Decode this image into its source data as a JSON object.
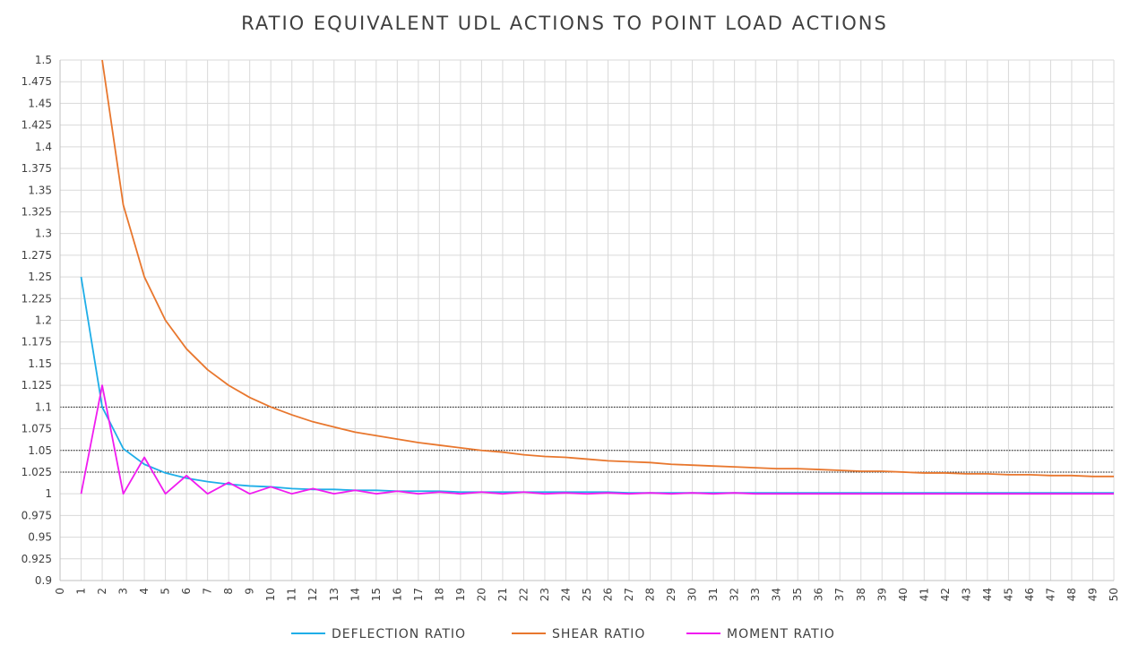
{
  "chart_data": {
    "type": "line",
    "title": "RATIO EQUIVALENT UDL ACTIONS TO POINT LOAD ACTIONS",
    "xlabel": "",
    "ylabel": "",
    "xlim": [
      0,
      50
    ],
    "ylim": [
      0.9,
      1.5
    ],
    "x_ticks": [
      "0",
      "1",
      "2",
      "3",
      "4",
      "5",
      "6",
      "7",
      "8",
      "9",
      "10",
      "11",
      "12",
      "13",
      "14",
      "15",
      "16",
      "17",
      "18",
      "19",
      "20",
      "21",
      "22",
      "23",
      "24",
      "25",
      "26",
      "27",
      "28",
      "29",
      "30",
      "31",
      "32",
      "33",
      "34",
      "35",
      "36",
      "37",
      "38",
      "39",
      "40",
      "41",
      "42",
      "43",
      "44",
      "45",
      "46",
      "47",
      "48",
      "49",
      "50"
    ],
    "y_ticks": [
      "0.9",
      "0.925",
      "0.95",
      "0.975",
      "1",
      "1.025",
      "1.05",
      "1.075",
      "1.1",
      "1.125",
      "1.15",
      "1.175",
      "1.2",
      "1.225",
      "1.25",
      "1.275",
      "1.3",
      "1.325",
      "1.35",
      "1.375",
      "1.4",
      "1.425",
      "1.45",
      "1.475",
      "1.5"
    ],
    "grid": true,
    "legend_position": "bottom",
    "reference_lines": [
      1.025,
      1.05,
      1.1
    ],
    "series": [
      {
        "name": "DEFLECTION RATIO",
        "color": "#1faee8",
        "x": [
          1,
          2,
          3,
          4,
          5,
          6,
          7,
          8,
          9,
          10,
          11,
          12,
          13,
          14,
          15,
          16,
          17,
          18,
          19,
          20,
          21,
          22,
          23,
          24,
          25,
          26,
          27,
          28,
          29,
          30,
          31,
          32,
          33,
          34,
          35,
          36,
          37,
          38,
          39,
          40,
          41,
          42,
          43,
          44,
          45,
          46,
          47,
          48,
          49,
          50
        ],
        "values": [
          1.25,
          1.1,
          1.052,
          1.034,
          1.024,
          1.018,
          1.014,
          1.011,
          1.009,
          1.008,
          1.006,
          1.005,
          1.005,
          1.004,
          1.004,
          1.003,
          1.003,
          1.003,
          1.002,
          1.002,
          1.002,
          1.002,
          1.002,
          1.002,
          1.002,
          1.002,
          1.001,
          1.001,
          1.001,
          1.001,
          1.001,
          1.001,
          1.001,
          1.001,
          1.001,
          1.001,
          1.001,
          1.001,
          1.001,
          1.001,
          1.001,
          1.001,
          1.001,
          1.001,
          1.001,
          1.001,
          1.001,
          1.001,
          1.001,
          1.001
        ]
      },
      {
        "name": "SHEAR RATIO",
        "color": "#e8772e",
        "x": [
          2,
          3,
          4,
          5,
          6,
          7,
          8,
          9,
          10,
          11,
          12,
          13,
          14,
          15,
          16,
          17,
          18,
          19,
          20,
          21,
          22,
          23,
          24,
          25,
          26,
          27,
          28,
          29,
          30,
          31,
          32,
          33,
          34,
          35,
          36,
          37,
          38,
          39,
          40,
          41,
          42,
          43,
          44,
          45,
          46,
          47,
          48,
          49,
          50
        ],
        "values": [
          1.5,
          1.333,
          1.25,
          1.2,
          1.167,
          1.143,
          1.125,
          1.111,
          1.1,
          1.091,
          1.083,
          1.077,
          1.071,
          1.067,
          1.063,
          1.059,
          1.056,
          1.053,
          1.05,
          1.048,
          1.045,
          1.043,
          1.042,
          1.04,
          1.038,
          1.037,
          1.036,
          1.034,
          1.033,
          1.032,
          1.031,
          1.03,
          1.029,
          1.029,
          1.028,
          1.027,
          1.026,
          1.026,
          1.025,
          1.024,
          1.024,
          1.023,
          1.023,
          1.022,
          1.022,
          1.021,
          1.021,
          1.02,
          1.02
        ]
      },
      {
        "name": "MOMENT RATIO",
        "color": "#f01cf0",
        "x": [
          1,
          2,
          3,
          4,
          5,
          6,
          7,
          8,
          9,
          10,
          11,
          12,
          13,
          14,
          15,
          16,
          17,
          18,
          19,
          20,
          21,
          22,
          23,
          24,
          25,
          26,
          27,
          28,
          29,
          30,
          31,
          32,
          33,
          34,
          35,
          36,
          37,
          38,
          39,
          40,
          41,
          42,
          43,
          44,
          45,
          46,
          47,
          48,
          49,
          50
        ],
        "values": [
          1.0,
          1.125,
          1.0,
          1.042,
          1.0,
          1.021,
          1.0,
          1.013,
          1.0,
          1.008,
          1.0,
          1.006,
          1.0,
          1.004,
          1.0,
          1.003,
          1.0,
          1.002,
          1.0,
          1.002,
          1.0,
          1.002,
          1.0,
          1.001,
          1.0,
          1.001,
          1.0,
          1.001,
          1.0,
          1.001,
          1.0,
          1.001,
          1.0,
          1.0,
          1.0,
          1.0,
          1.0,
          1.0,
          1.0,
          1.0,
          1.0,
          1.0,
          1.0,
          1.0,
          1.0,
          1.0,
          1.0,
          1.0,
          1.0,
          1.0
        ]
      }
    ]
  }
}
